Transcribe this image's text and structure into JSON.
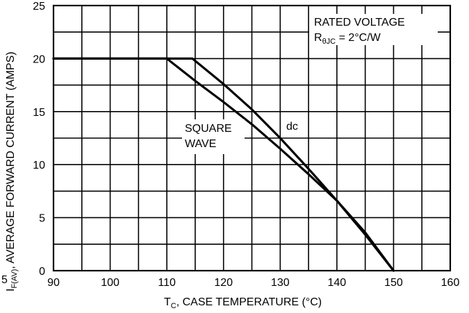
{
  "chart_data": {
    "type": "line",
    "xlabel_main": "T",
    "xlabel_sub": "C",
    "xlabel_rest": ", CASE TEMPERATURE (°C)",
    "ylabel_main": "I",
    "ylabel_sub": "F(AV)",
    "ylabel_rest": ", AVERAGE FORWARD CURRENT (AMPS)",
    "xlim": [
      90,
      160
    ],
    "ylim": [
      0,
      25
    ],
    "x_ticks": [
      "90",
      "100",
      "110",
      "120",
      "130",
      "140",
      "150",
      "160"
    ],
    "y_ticks": [
      "0",
      "5",
      "10",
      "15",
      "20",
      "25"
    ],
    "grid": true,
    "grid_x_step": 5,
    "grid_y_step": 2.5,
    "annotations": {
      "rated_voltage": "RATED VOLTAGE",
      "rtheta_main": "R",
      "rtheta_sub": "θJC",
      "rtheta_rest": " = 2°C/W",
      "square_line1": "SQUARE",
      "square_line2": "WAVE",
      "dc": "dc",
      "stray": "5"
    },
    "series": [
      {
        "name": "dc",
        "x": [
          90,
          114.5,
          120,
          125,
          130,
          135,
          140,
          145,
          150
        ],
        "y": [
          20,
          20,
          17.6,
          15.2,
          12.5,
          9.6,
          6.6,
          3.4,
          0
        ]
      },
      {
        "name": "SQUARE WAVE",
        "x": [
          90,
          110,
          115,
          120,
          125,
          130,
          135,
          140,
          145,
          150
        ],
        "y": [
          20,
          20,
          17.9,
          15.9,
          13.8,
          11.5,
          9.1,
          6.6,
          3.6,
          0
        ]
      }
    ]
  }
}
